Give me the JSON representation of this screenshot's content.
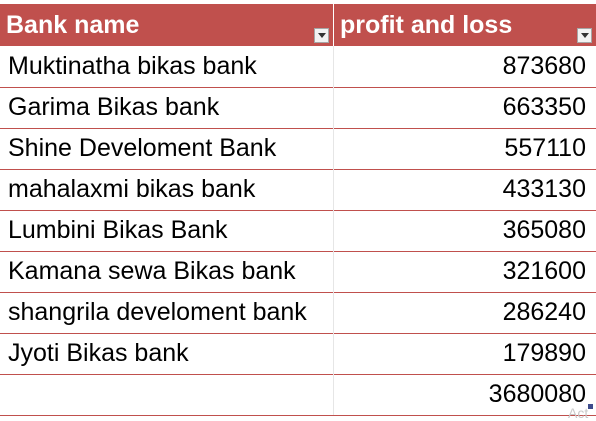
{
  "table": {
    "headers": {
      "bank_name": "Bank name",
      "profit_and_loss": "profit and loss"
    },
    "rows": [
      {
        "bank": "Muktinatha bikas bank",
        "value": "873680"
      },
      {
        "bank": "Garima Bikas bank",
        "value": "663350"
      },
      {
        "bank": "Shine Develoment Bank",
        "value": "557110"
      },
      {
        "bank": "mahalaxmi bikas bank",
        "value": "433130"
      },
      {
        "bank": "Lumbini Bikas Bank",
        "value": "365080"
      },
      {
        "bank": "Kamana sewa Bikas bank",
        "value": "321600"
      },
      {
        "bank": "shangrila develoment bank",
        "value": "286240"
      },
      {
        "bank": "Jyoti Bikas bank",
        "value": "179890"
      }
    ],
    "total": {
      "bank": "",
      "value": "3680080"
    }
  },
  "overlay": {
    "watermark_fragment": "Act"
  },
  "colors": {
    "header_bg": "#c0504d",
    "row_border": "#c0504d"
  }
}
